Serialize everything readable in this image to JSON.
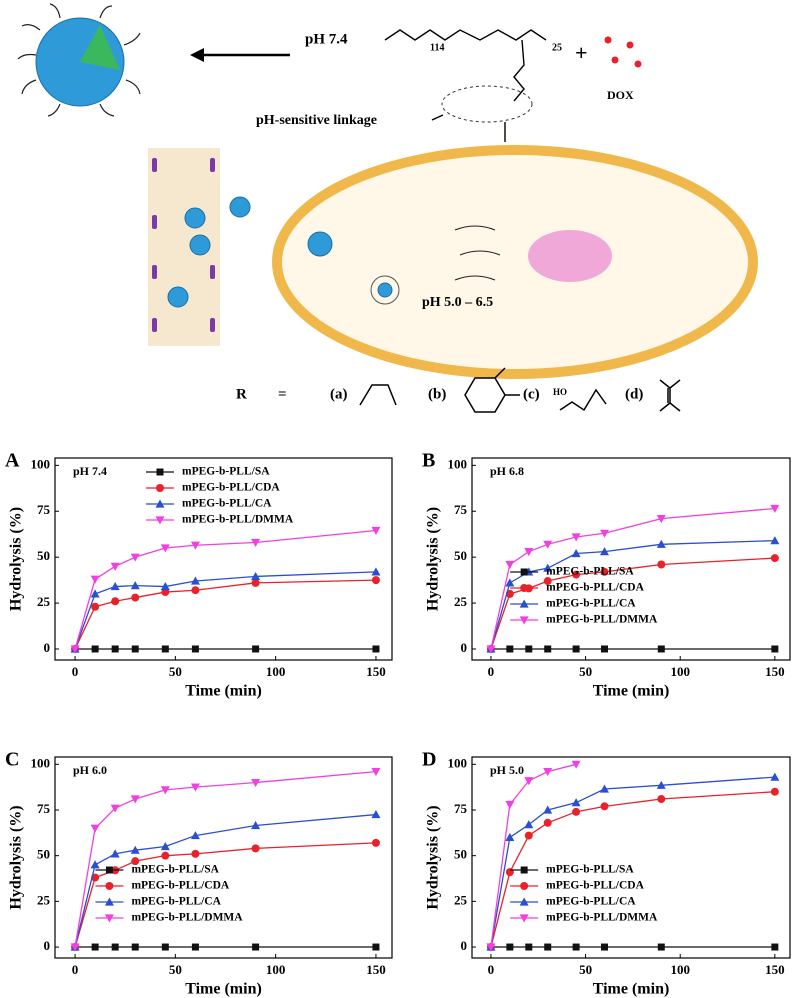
{
  "scheme": {
    "ph_top": "pH 7.4",
    "plus": "+",
    "dox": "DOX",
    "linkage": "pH-sensitive linkage",
    "ph_cell": "pH 5.0 – 6.5",
    "r_label": "R",
    "equals": "=",
    "options": [
      "(a)",
      "(b)",
      "(c)",
      "(d)"
    ],
    "ho": "HO",
    "peg_n": "114",
    "pll_n": "25"
  },
  "chart_data": [
    {
      "type": "line",
      "panel_label": "A",
      "annotation": "pH 7.4",
      "x_label": "Time (min)",
      "y_label": "Hydrolysis (%)",
      "xlim": [
        -10,
        158
      ],
      "ylim": [
        -6,
        104
      ],
      "xticks": [
        0,
        50,
        100,
        150
      ],
      "yticks": [
        0,
        25,
        50,
        75,
        100
      ],
      "legend": "upper center",
      "series": [
        {
          "name": "mPEG-b-PLL/SA",
          "color": "#111111",
          "marker": "square",
          "x": [
            0,
            10,
            20,
            30,
            45,
            60,
            90,
            150
          ],
          "values": [
            0,
            0,
            0,
            0,
            0,
            0,
            0,
            0
          ]
        },
        {
          "name": "mPEG-b-PLL/CDA",
          "color": "#e8212a",
          "marker": "circle",
          "x": [
            0,
            10,
            20,
            30,
            45,
            60,
            90,
            150
          ],
          "values": [
            0,
            23,
            26,
            28,
            31,
            32,
            36,
            37.5
          ]
        },
        {
          "name": "mPEG-b-PLL/CA",
          "color": "#2a4fcf",
          "marker": "triangle-up",
          "x": [
            0,
            10,
            20,
            30,
            45,
            60,
            90,
            150
          ],
          "values": [
            0,
            30,
            34,
            34.5,
            34,
            37,
            39.5,
            42
          ]
        },
        {
          "name": "mPEG-b-PLL/DMMA",
          "color": "#f040e0",
          "marker": "triangle-down",
          "x": [
            0,
            10,
            20,
            30,
            45,
            60,
            90,
            150
          ],
          "values": [
            0,
            38,
            45,
            50,
            55,
            56.5,
            58,
            64.5
          ]
        }
      ]
    },
    {
      "type": "line",
      "panel_label": "B",
      "annotation": "pH 6.8",
      "x_label": "Time (min)",
      "y_label": "Hydrolysis (%)",
      "xlim": [
        -10,
        158
      ],
      "ylim": [
        -6,
        104
      ],
      "xticks": [
        0,
        50,
        100,
        150
      ],
      "yticks": [
        0,
        25,
        50,
        75,
        100
      ],
      "legend": "lower right",
      "series": [
        {
          "name": "mPEG-b-PLL/SA",
          "color": "#111111",
          "marker": "square",
          "x": [
            0,
            10,
            20,
            30,
            45,
            60,
            90,
            150
          ],
          "values": [
            0,
            0,
            0,
            0,
            0,
            0,
            0,
            0
          ]
        },
        {
          "name": "mPEG-b-PLL/CDA",
          "color": "#e8212a",
          "marker": "circle",
          "x": [
            0,
            10,
            20,
            30,
            45,
            60,
            90,
            150
          ],
          "values": [
            0,
            30,
            33,
            37,
            40.5,
            42,
            46,
            49.5
          ]
        },
        {
          "name": "mPEG-b-PLL/CA",
          "color": "#2a4fcf",
          "marker": "triangle-up",
          "x": [
            0,
            10,
            20,
            30,
            45,
            60,
            90,
            150
          ],
          "values": [
            0,
            36,
            42,
            44,
            52,
            53,
            57,
            59
          ]
        },
        {
          "name": "mPEG-b-PLL/DMMA",
          "color": "#f040e0",
          "marker": "triangle-down",
          "x": [
            0,
            10,
            20,
            30,
            45,
            60,
            90,
            150
          ],
          "values": [
            0,
            46,
            53,
            57,
            61,
            63,
            71,
            76.5
          ]
        }
      ]
    },
    {
      "type": "line",
      "panel_label": "C",
      "annotation": "pH 6.0",
      "x_label": "Time (min)",
      "y_label": "Hydrolysis (%)",
      "xlim": [
        -10,
        158
      ],
      "ylim": [
        -6,
        104
      ],
      "xticks": [
        0,
        50,
        100,
        150
      ],
      "yticks": [
        0,
        25,
        50,
        75,
        100
      ],
      "legend": "lower right",
      "series": [
        {
          "name": "mPEG-b-PLL/SA",
          "color": "#111111",
          "marker": "square",
          "x": [
            0,
            10,
            20,
            30,
            45,
            60,
            90,
            150
          ],
          "values": [
            0,
            0,
            0,
            0,
            0,
            0,
            0,
            0
          ]
        },
        {
          "name": "mPEG-b-PLL/CDA",
          "color": "#e8212a",
          "marker": "circle",
          "x": [
            0,
            10,
            20,
            30,
            45,
            60,
            90,
            150
          ],
          "values": [
            0,
            38,
            42,
            47,
            50,
            51,
            54,
            57
          ]
        },
        {
          "name": "mPEG-b-PLL/CA",
          "color": "#2a4fcf",
          "marker": "triangle-up",
          "x": [
            0,
            10,
            20,
            30,
            45,
            60,
            90,
            150
          ],
          "values": [
            0,
            45,
            51,
            53,
            55,
            61,
            66.5,
            72.5
          ]
        },
        {
          "name": "mPEG-b-PLL/DMMA",
          "color": "#f040e0",
          "marker": "triangle-down",
          "x": [
            0,
            10,
            20,
            30,
            45,
            60,
            90,
            150
          ],
          "values": [
            0,
            65,
            76,
            81,
            86,
            87.5,
            90,
            96
          ]
        }
      ]
    },
    {
      "type": "line",
      "panel_label": "D",
      "annotation": "pH 5.0",
      "x_label": "Time (min)",
      "y_label": "Hydrolysis (%)",
      "xlim": [
        -10,
        158
      ],
      "ylim": [
        -6,
        104
      ],
      "xticks": [
        0,
        50,
        100,
        150
      ],
      "yticks": [
        0,
        25,
        50,
        75,
        100
      ],
      "legend": "lower right",
      "series": [
        {
          "name": "mPEG-b-PLL/SA",
          "color": "#111111",
          "marker": "square",
          "x": [
            0,
            10,
            20,
            30,
            45,
            60,
            90,
            150
          ],
          "values": [
            0,
            0,
            0,
            0,
            0,
            0,
            0,
            0
          ]
        },
        {
          "name": "mPEG-b-PLL/CDA",
          "color": "#e8212a",
          "marker": "circle",
          "x": [
            0,
            10,
            20,
            30,
            45,
            60,
            90,
            150
          ],
          "values": [
            0,
            41,
            61,
            68,
            74,
            77,
            81,
            85
          ]
        },
        {
          "name": "mPEG-b-PLL/CA",
          "color": "#2a4fcf",
          "marker": "triangle-up",
          "x": [
            0,
            10,
            20,
            30,
            45,
            60,
            90,
            150
          ],
          "values": [
            0,
            60,
            67,
            75,
            79,
            86.5,
            88.5,
            93
          ]
        },
        {
          "name": "mPEG-b-PLL/DMMA",
          "color": "#f040e0",
          "marker": "triangle-down",
          "x": [
            0,
            10,
            20,
            30,
            45
          ],
          "values": [
            0,
            78,
            91,
            96,
            100
          ]
        }
      ]
    }
  ]
}
